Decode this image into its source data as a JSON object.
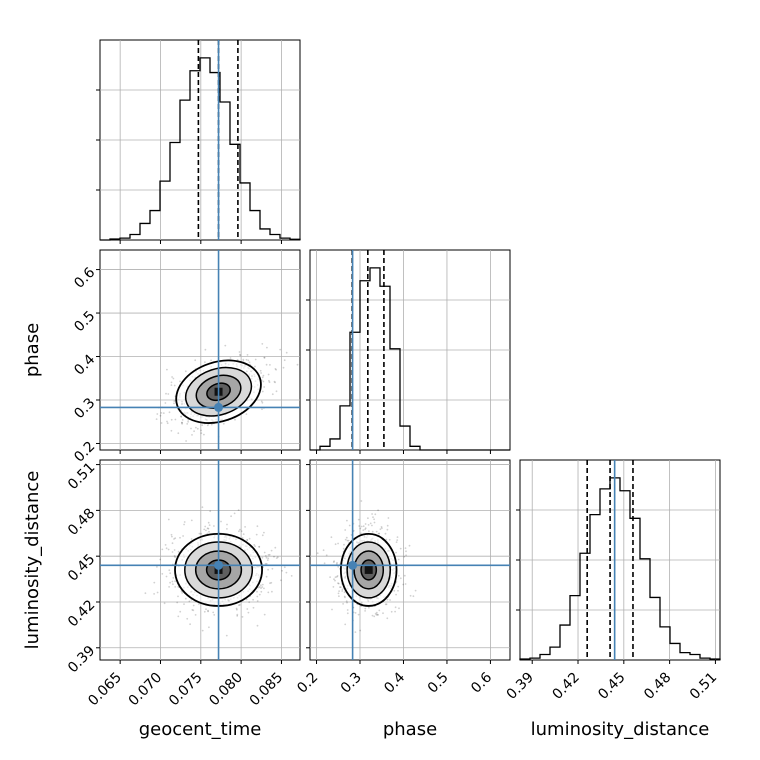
{
  "chart_data": {
    "type": "corner",
    "parameters": [
      "geocent_time",
      "phase",
      "luminosity_distance"
    ],
    "truths": {
      "geocent_time": 0.0772,
      "phase": 0.283,
      "luminosity_distance": 0.444
    },
    "quantiles": {
      "geocent_time": [
        0.0747,
        0.0772,
        0.0796
      ],
      "phase": [
        0.282,
        0.318,
        0.355
      ],
      "luminosity_distance": [
        0.426,
        0.441,
        0.456
      ]
    },
    "axes": {
      "geocent_time": {
        "range": [
          0.0625,
          0.0873
        ],
        "ticks": [
          "0.065",
          "0.070",
          "0.075",
          "0.080",
          "0.085"
        ],
        "tick_values": [
          0.065,
          0.07,
          0.075,
          0.08,
          0.085
        ]
      },
      "phase": {
        "range": [
          0.185,
          0.645
        ],
        "ticks": [
          "0.2",
          "0.3",
          "0.4",
          "0.5",
          "0.6"
        ],
        "tick_values": [
          0.2,
          0.3,
          0.4,
          0.5,
          0.6
        ]
      },
      "luminosity_distance": {
        "range": [
          0.382,
          0.513
        ],
        "ticks": [
          "0.39",
          "0.42",
          "0.45",
          "0.48",
          "0.51"
        ],
        "tick_values": [
          0.39,
          0.42,
          0.45,
          0.48,
          0.51
        ]
      }
    },
    "histograms": {
      "geocent_time": [
        0,
        0.005,
        0.01,
        0.03,
        0.09,
        0.16,
        0.32,
        0.53,
        0.76,
        0.92,
        0.99,
        0.91,
        0.75,
        0.52,
        0.31,
        0.16,
        0.06,
        0.03,
        0.01,
        0.004
      ],
      "phase": [
        0,
        0.02,
        0.06,
        0.24,
        0.64,
        0.92,
        0.99,
        0.89,
        0.55,
        0.13,
        0.02,
        0,
        0,
        0,
        0,
        0,
        0,
        0,
        0,
        0
      ],
      "luminosity_distance": [
        0.005,
        0.01,
        0.03,
        0.07,
        0.19,
        0.35,
        0.58,
        0.79,
        0.93,
        0.99,
        0.92,
        0.77,
        0.55,
        0.34,
        0.18,
        0.09,
        0.04,
        0.03,
        0.01,
        0.005
      ]
    },
    "grid": true
  }
}
